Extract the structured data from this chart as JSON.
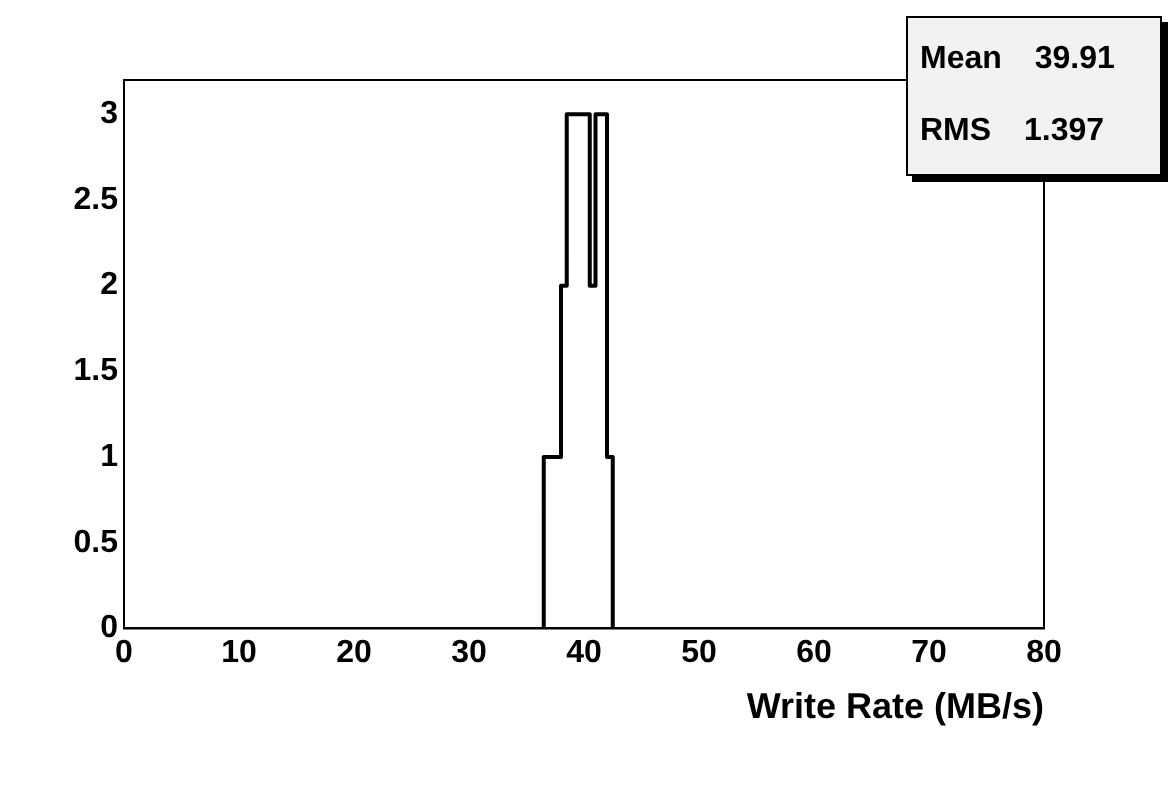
{
  "chart_data": {
    "type": "histogram",
    "xlabel": "Write Rate (MB/s)",
    "bins": [
      36.5,
      38,
      38.5,
      40.5,
      41,
      42,
      42.5
    ],
    "values": [
      1,
      2,
      3,
      2,
      3,
      1
    ],
    "color": "#000000",
    "xlim": [
      0,
      80
    ],
    "xticks": [
      0,
      10,
      20,
      30,
      40,
      50,
      60,
      70,
      80
    ],
    "ylim": [
      0,
      3.2
    ],
    "yticks": [
      0,
      0.5,
      1,
      1.5,
      2,
      2.5,
      3
    ],
    "grid": false,
    "annotations": [
      "Mean 39.91",
      "RMS 1.397"
    ]
  }
}
